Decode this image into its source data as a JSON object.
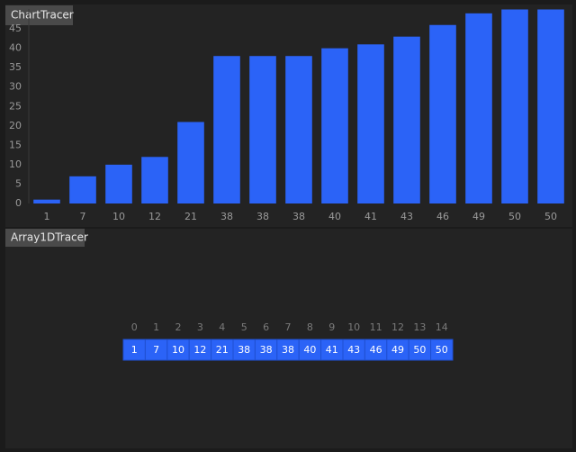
{
  "chart_panel": {
    "title": "ChartTracer"
  },
  "chart_data": {
    "type": "bar",
    "categories": [
      "1",
      "7",
      "10",
      "12",
      "21",
      "38",
      "38",
      "38",
      "40",
      "41",
      "43",
      "46",
      "49",
      "50",
      "50"
    ],
    "values": [
      1,
      7,
      10,
      12,
      21,
      38,
      38,
      38,
      40,
      41,
      43,
      46,
      49,
      50,
      50
    ],
    "color": "#2b63f7",
    "ylim": [
      0,
      50
    ],
    "yticks": [
      0,
      5,
      10,
      15,
      20,
      25,
      30,
      35,
      40,
      45
    ]
  },
  "array_panel": {
    "title": "Array1DTracer",
    "indices": [
      "0",
      "1",
      "2",
      "3",
      "4",
      "5",
      "6",
      "7",
      "8",
      "9",
      "10",
      "11",
      "12",
      "13",
      "14"
    ],
    "values": [
      "1",
      "7",
      "10",
      "12",
      "21",
      "38",
      "38",
      "38",
      "40",
      "41",
      "43",
      "46",
      "49",
      "50",
      "50"
    ]
  }
}
